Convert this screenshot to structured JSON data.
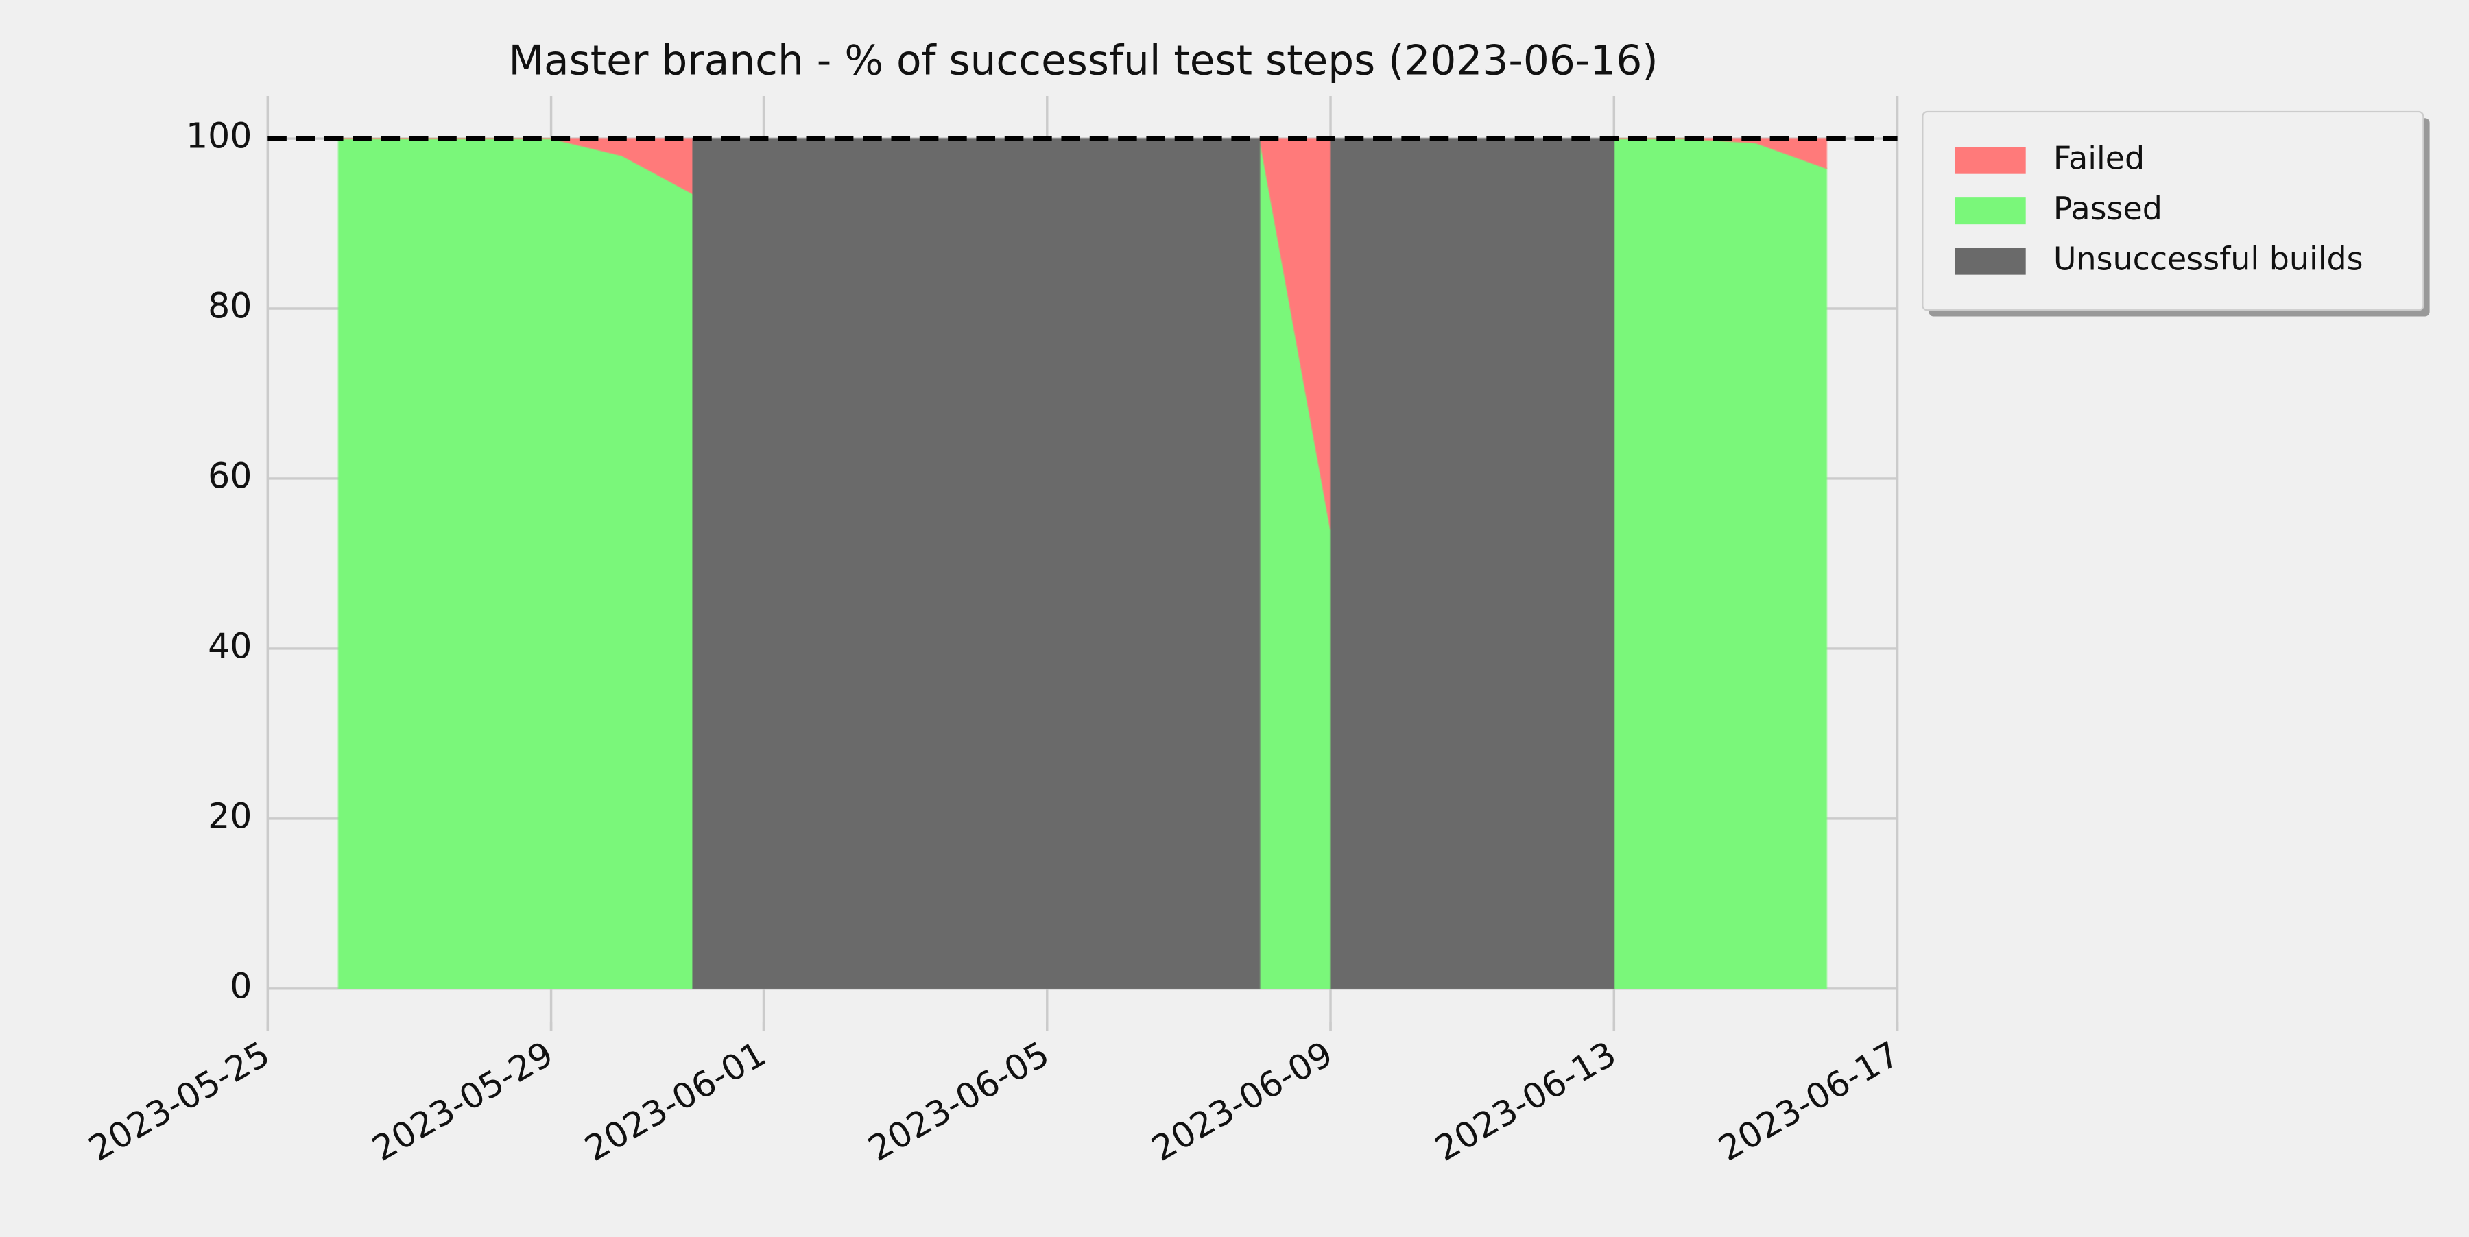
{
  "chart_data": {
    "type": "stackarea",
    "title": "Master branch - % of successful test steps (2023-06-16)",
    "x": [
      "2023-05-26",
      "2023-05-27",
      "2023-05-28",
      "2023-05-29",
      "2023-05-30",
      "2023-05-31",
      "2023-05-31",
      "2023-06-01",
      "2023-06-02",
      "2023-06-03",
      "2023-06-04",
      "2023-06-05",
      "2023-06-06",
      "2023-06-07",
      "2023-06-08",
      "2023-06-08",
      "2023-06-09",
      "2023-06-09",
      "2023-06-10",
      "2023-06-11",
      "2023-06-12",
      "2023-06-13",
      "2023-06-13",
      "2023-06-14",
      "2023-06-15",
      "2023-06-16"
    ],
    "series": [
      {
        "name": "Passed",
        "color": "#7af77a",
        "values": [
          100,
          100,
          100,
          100,
          98,
          93.5,
          null,
          null,
          null,
          null,
          null,
          null,
          null,
          null,
          null,
          100,
          54,
          null,
          null,
          null,
          null,
          null,
          100,
          100,
          99.5,
          96.5
        ]
      },
      {
        "name": "Failed",
        "color": "#ff7a7a",
        "values": [
          0,
          0,
          0,
          0,
          2,
          6.5,
          null,
          null,
          null,
          null,
          null,
          null,
          null,
          null,
          null,
          0,
          46,
          null,
          null,
          null,
          null,
          null,
          0,
          0,
          0.5,
          3.5
        ]
      },
      {
        "name": "Unsuccessful builds",
        "color": "#6a6a6a",
        "values": [
          null,
          null,
          null,
          null,
          null,
          null,
          100,
          100,
          100,
          100,
          100,
          100,
          100,
          100,
          100,
          null,
          null,
          100,
          100,
          100,
          100,
          100,
          null,
          null,
          null,
          null
        ]
      }
    ],
    "threshold": 100,
    "xlim": [
      "2023-05-25",
      "2023-06-17"
    ],
    "xticks": [
      "2023-05-25",
      "2023-05-29",
      "2023-06-01",
      "2023-06-05",
      "2023-06-09",
      "2023-06-13",
      "2023-06-17"
    ],
    "ylim": [
      -5,
      105
    ],
    "yticks": [
      0,
      20,
      40,
      60,
      80,
      100
    ],
    "grid": true,
    "legend": "upper right outside"
  }
}
